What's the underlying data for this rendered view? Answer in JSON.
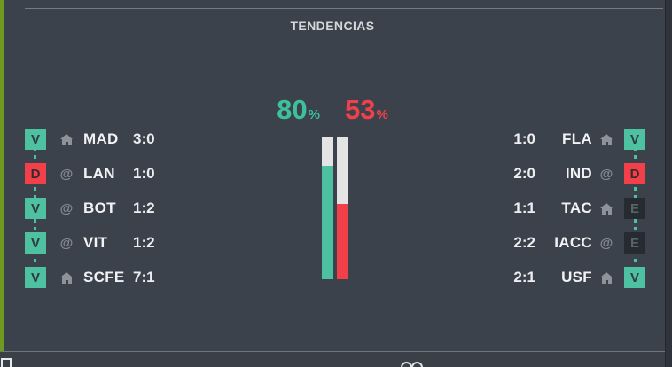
{
  "header": {
    "title": "TENDENCIAS"
  },
  "icons": {
    "at_symbol": "@"
  },
  "colors": {
    "background": "#3c424b",
    "accent_teal": "#4ec1a1",
    "accent_red": "#f2404a",
    "draw_dark": "#262b32",
    "strip_green": "#6f9a20",
    "bar_track": "#e4e4e4"
  },
  "trends": {
    "left": {
      "percent": "80",
      "percent_sign": "%",
      "bar_fill_percent": 80,
      "rows": [
        {
          "result": "V",
          "venue": "home",
          "team": "MAD",
          "score": "3:0"
        },
        {
          "result": "D",
          "venue": "away",
          "team": "LAN",
          "score": "1:0"
        },
        {
          "result": "V",
          "venue": "away",
          "team": "BOT",
          "score": "1:2"
        },
        {
          "result": "V",
          "venue": "away",
          "team": "VIT",
          "score": "1:2"
        },
        {
          "result": "V",
          "venue": "home",
          "team": "SCFE",
          "score": "7:1"
        }
      ]
    },
    "right": {
      "percent": "53",
      "percent_sign": "%",
      "bar_fill_percent": 53,
      "rows": [
        {
          "score": "1:0",
          "team": "FLA",
          "venue": "home",
          "result": "V"
        },
        {
          "score": "2:0",
          "team": "IND",
          "venue": "away",
          "result": "D"
        },
        {
          "score": "1:1",
          "team": "TAC",
          "venue": "home",
          "result": "E"
        },
        {
          "score": "2:2",
          "team": "IACC",
          "venue": "away",
          "result": "E"
        },
        {
          "score": "2:1",
          "team": "USF",
          "venue": "home",
          "result": "V"
        }
      ]
    }
  }
}
